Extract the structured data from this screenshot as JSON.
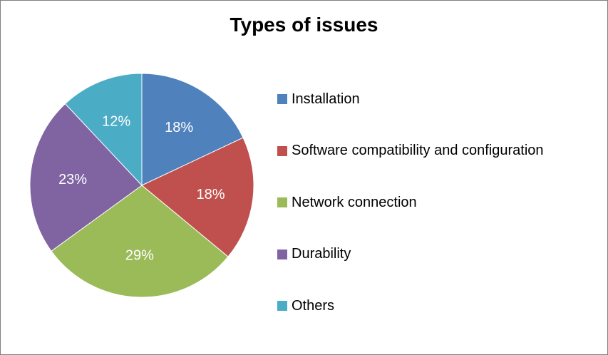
{
  "chart_data": {
    "type": "pie",
    "title": "Types of issues",
    "categories": [
      "Installation",
      "Software compatibility and configuration",
      "Network connection",
      "Durability",
      "Others"
    ],
    "values": [
      18,
      18,
      29,
      23,
      12
    ],
    "labels": [
      "18%",
      "18%",
      "29%",
      "23%",
      "12%"
    ],
    "colors": [
      "#4f81bd",
      "#c0504d",
      "#9bbb59",
      "#8064a2",
      "#4bacc6"
    ],
    "legend_position": "right",
    "start_angle": "top, clockwise"
  }
}
